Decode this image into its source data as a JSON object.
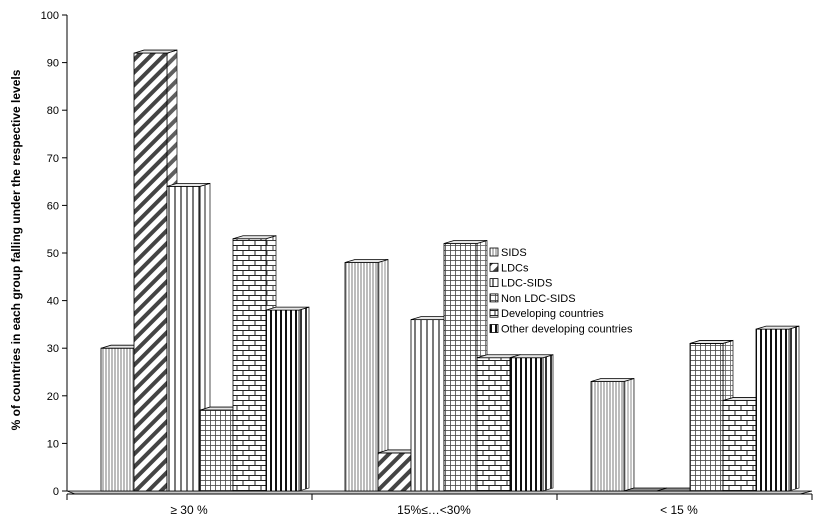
{
  "chart_data": {
    "type": "bar",
    "title": "",
    "xlabel": "",
    "ylabel": "% of countries in each group falling under the respective levels",
    "ylim": [
      0,
      100
    ],
    "yticks": [
      0,
      10,
      20,
      30,
      40,
      50,
      60,
      70,
      80,
      90,
      100
    ],
    "categories": [
      "≥ 30 %",
      "15%≤…<30%",
      "< 15 %"
    ],
    "series": [
      {
        "name": "SIDS",
        "values": [
          30,
          48,
          23
        ],
        "color": "#ffffff",
        "pattern": "vertical-fine"
      },
      {
        "name": "LDCs",
        "values": [
          92,
          8,
          0
        ],
        "color": "#ffffff",
        "pattern": "diagonal"
      },
      {
        "name": "LDC-SIDS",
        "values": [
          64,
          36,
          0
        ],
        "color": "#ffffff",
        "pattern": "vertical-wide"
      },
      {
        "name": "Non LDC-SIDS",
        "values": [
          17,
          52,
          31
        ],
        "color": "#ffffff",
        "pattern": "grid"
      },
      {
        "name": "Developing countries",
        "values": [
          53,
          28,
          19
        ],
        "color": "#ffffff",
        "pattern": "brick"
      },
      {
        "name": "Other developing countries",
        "values": [
          38,
          28,
          34
        ],
        "color": "#ffffff",
        "pattern": "vertical-bold"
      }
    ],
    "grid": false,
    "legend_position": "top-right",
    "style": "3d-clustered"
  }
}
